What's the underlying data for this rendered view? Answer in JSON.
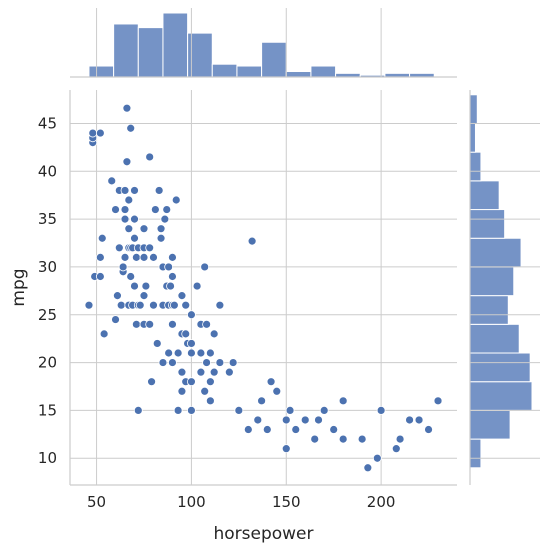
{
  "chart_data": {
    "type": "scatter",
    "subtype": "jointplot",
    "xlabel": "horsepower",
    "ylabel": "mpg",
    "xlim": [
      36,
      240
    ],
    "ylim": [
      7.2,
      48.5
    ],
    "xticks": [
      50,
      100,
      150,
      200
    ],
    "yticks": [
      10,
      15,
      20,
      25,
      30,
      35,
      40,
      45
    ],
    "grid": true,
    "marker_color": "#4c72b0",
    "bar_color": "#7593c6",
    "bar_edge_color": "#ffffff",
    "points": [
      [
        46,
        26
      ],
      [
        48,
        43
      ],
      [
        48,
        43.5
      ],
      [
        48,
        44
      ],
      [
        49,
        29
      ],
      [
        52,
        44
      ],
      [
        52,
        29
      ],
      [
        52,
        31
      ],
      [
        53,
        33
      ],
      [
        54,
        23
      ],
      [
        58,
        39
      ],
      [
        60,
        36
      ],
      [
        60,
        24.5
      ],
      [
        61,
        27
      ],
      [
        62,
        32
      ],
      [
        62,
        38
      ],
      [
        63,
        26
      ],
      [
        64,
        29.5
      ],
      [
        64,
        30
      ],
      [
        65,
        35
      ],
      [
        65,
        36
      ],
      [
        65,
        31
      ],
      [
        65,
        38
      ],
      [
        66,
        46.6
      ],
      [
        66,
        41
      ],
      [
        67,
        26
      ],
      [
        67,
        32
      ],
      [
        67,
        34
      ],
      [
        67,
        37
      ],
      [
        68,
        29
      ],
      [
        68,
        44.5
      ],
      [
        68,
        32
      ],
      [
        69,
        32
      ],
      [
        69,
        26
      ],
      [
        70,
        38
      ],
      [
        70,
        33
      ],
      [
        70,
        35
      ],
      [
        70,
        28
      ],
      [
        71,
        31
      ],
      [
        71,
        24
      ],
      [
        72,
        26
      ],
      [
        72,
        15
      ],
      [
        72,
        32
      ],
      [
        73,
        26
      ],
      [
        75,
        27
      ],
      [
        75,
        31
      ],
      [
        75,
        32
      ],
      [
        75,
        34
      ],
      [
        75,
        24
      ],
      [
        76,
        28
      ],
      [
        78,
        41.5
      ],
      [
        78,
        24
      ],
      [
        78,
        32
      ],
      [
        79,
        18
      ],
      [
        80,
        31
      ],
      [
        80,
        26
      ],
      [
        81,
        36
      ],
      [
        82,
        22
      ],
      [
        83,
        38
      ],
      [
        84,
        34
      ],
      [
        84,
        33
      ],
      [
        85,
        20
      ],
      [
        85,
        26
      ],
      [
        85,
        30
      ],
      [
        86,
        35
      ],
      [
        87,
        28
      ],
      [
        87,
        36
      ],
      [
        88,
        21
      ],
      [
        88,
        26
      ],
      [
        88,
        30
      ],
      [
        89,
        28
      ],
      [
        90,
        20
      ],
      [
        90,
        24
      ],
      [
        90,
        26
      ],
      [
        90,
        29
      ],
      [
        90,
        31
      ],
      [
        91,
        26
      ],
      [
        92,
        37
      ],
      [
        93,
        15
      ],
      [
        93,
        21
      ],
      [
        95,
        17
      ],
      [
        95,
        23
      ],
      [
        95,
        27
      ],
      [
        95,
        19
      ],
      [
        97,
        18
      ],
      [
        97,
        23
      ],
      [
        97,
        26
      ],
      [
        98,
        22
      ],
      [
        100,
        15
      ],
      [
        100,
        18
      ],
      [
        100,
        21
      ],
      [
        100,
        22
      ],
      [
        100,
        25
      ],
      [
        103,
        28
      ],
      [
        105,
        19
      ],
      [
        105,
        21
      ],
      [
        105,
        24
      ],
      [
        107,
        17
      ],
      [
        107,
        30
      ],
      [
        108,
        24
      ],
      [
        108,
        20
      ],
      [
        110,
        16
      ],
      [
        110,
        18
      ],
      [
        110,
        21
      ],
      [
        112,
        19
      ],
      [
        112,
        23
      ],
      [
        115,
        20
      ],
      [
        115,
        26
      ],
      [
        120,
        19
      ],
      [
        122,
        20
      ],
      [
        125,
        15
      ],
      [
        130,
        13
      ],
      [
        132,
        32.7
      ],
      [
        135,
        14
      ],
      [
        137,
        16
      ],
      [
        140,
        13
      ],
      [
        142,
        18
      ],
      [
        145,
        17
      ],
      [
        150,
        11
      ],
      [
        150,
        14
      ],
      [
        152,
        15
      ],
      [
        155,
        13
      ],
      [
        160,
        14
      ],
      [
        165,
        12
      ],
      [
        167,
        14
      ],
      [
        170,
        15
      ],
      [
        175,
        13
      ],
      [
        180,
        16
      ],
      [
        180,
        12
      ],
      [
        190,
        12
      ],
      [
        193,
        9
      ],
      [
        198,
        10
      ],
      [
        200,
        15
      ],
      [
        208,
        11
      ],
      [
        210,
        12
      ],
      [
        215,
        14
      ],
      [
        220,
        14
      ],
      [
        225,
        13
      ],
      [
        230,
        16
      ]
    ],
    "x_histogram": {
      "bin_edges": [
        46,
        59,
        72,
        85,
        98,
        111,
        124,
        137,
        150,
        163,
        176,
        189,
        202,
        215,
        228
      ],
      "counts": [
        6,
        29,
        27,
        35,
        24,
        7,
        6,
        19,
        3,
        6,
        2,
        1,
        2,
        2
      ]
    },
    "y_histogram": {
      "bin_edges": [
        9,
        12,
        15,
        18,
        21,
        24,
        27,
        30,
        33,
        36,
        39,
        42,
        45,
        48
      ],
      "counts": [
        6,
        22,
        34,
        33,
        27,
        21,
        24,
        28,
        19,
        16,
        6,
        3,
        4
      ]
    }
  }
}
